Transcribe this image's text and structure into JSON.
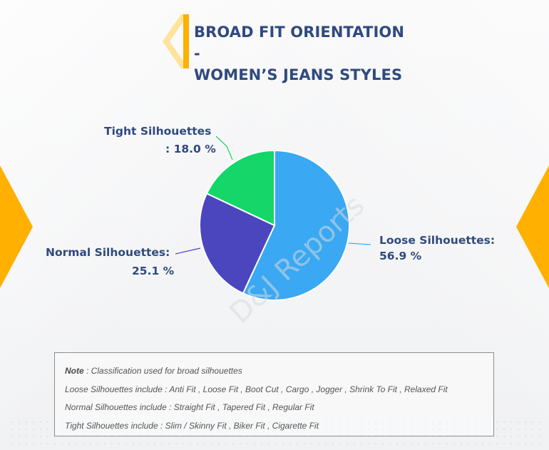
{
  "title": "BROAD FIT ORIENTATION -\nWOMEN’S JEANS STYLES",
  "colors": {
    "title": "#2f4a7e",
    "accent": "#ffb000",
    "loose": "#3aa8f2",
    "normal": "#4b46bd",
    "tight": "#14d669",
    "box_border": "#8e8e8e",
    "note_text": "#555555"
  },
  "chart_data": {
    "type": "pie",
    "slices": [
      {
        "name": "Loose Silhouettes",
        "value": 56.9,
        "label_line_1": "Loose Silhouettes:",
        "label_line_2": "56.9 %",
        "color": "#3aa8f2"
      },
      {
        "name": "Normal Silhouettes",
        "value": 25.1,
        "label_line_1": "Normal Silhouettes:",
        "label_line_2": "25.1 %",
        "color": "#4b46bd"
      },
      {
        "name": "Tight Silhouettes",
        "value": 18.0,
        "label_line_1": "Tight Silhouettes",
        "label_line_2": ": 18.0 %",
        "color": "#14d669"
      }
    ]
  },
  "watermark": "D&J Reports",
  "note": {
    "label": "Note",
    "text": ": Classification used for broad silhouettes",
    "lines": [
      "Loose Silhouettes include : Anti Fit , Loose Fit , Boot Cut , Cargo , Jogger , Shrink To Fit , Relaxed Fit",
      "Normal Silhouettes include : Straight Fit , Tapered Fit , Regular Fit",
      "Tight Silhouettes include : Slim / Skinny Fit , Biker Fit , Cigarette Fit"
    ]
  }
}
